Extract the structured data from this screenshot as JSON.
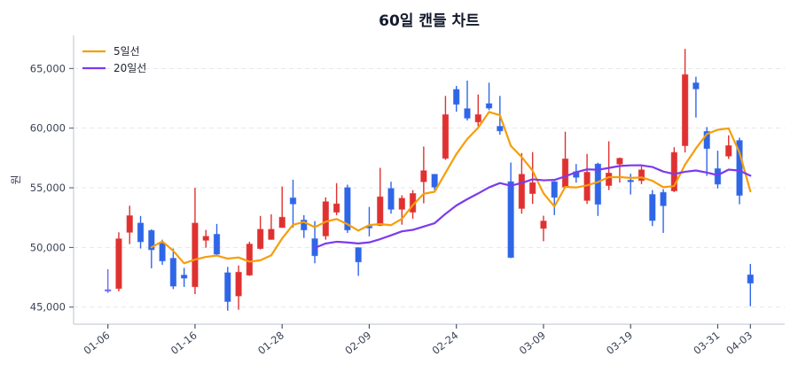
{
  "chart_data": {
    "type": "candlestick",
    "title": "60일 캔들 차트",
    "xlabel": "",
    "ylabel": "원",
    "ylim": [
      43570,
      67770
    ],
    "xlim": [
      -3.15,
      62.15
    ],
    "grid": {
      "y": true,
      "x": false,
      "style": "dashed"
    },
    "legend_position": "upper left",
    "yticks": [
      {
        "value": 45000,
        "label": "45,000"
      },
      {
        "value": 50000,
        "label": "50,000"
      },
      {
        "value": 55000,
        "label": "55,000"
      },
      {
        "value": 60000,
        "label": "60,000"
      },
      {
        "value": 65000,
        "label": "65,000"
      }
    ],
    "xticks": [
      {
        "index": 0,
        "label": "01-06"
      },
      {
        "index": 8,
        "label": "01-16"
      },
      {
        "index": 16,
        "label": "01-28"
      },
      {
        "index": 24,
        "label": "02-09"
      },
      {
        "index": 32,
        "label": "02-24"
      },
      {
        "index": 40,
        "label": "03-09"
      },
      {
        "index": 48,
        "label": "03-19"
      },
      {
        "index": 56,
        "label": "03-31"
      },
      {
        "index": 59,
        "label": "04-03"
      }
    ],
    "colors": {
      "up": "#e03131",
      "down": "#2f66e8",
      "flat": "#6b6bf5",
      "ma5": "#f59e0b",
      "ma20": "#7c3aed",
      "grid": "#e4e7ec",
      "axis": "#dde1e7"
    },
    "ohlc_fields": [
      "open",
      "high",
      "low",
      "close"
    ],
    "candles": [
      [
        46400,
        48180,
        46190,
        46400
      ],
      [
        46560,
        51270,
        46320,
        50720
      ],
      [
        51270,
        53500,
        50280,
        52660
      ],
      [
        52040,
        52640,
        49910,
        50480
      ],
      [
        51420,
        51520,
        48250,
        49810
      ],
      [
        50330,
        50650,
        48550,
        48870
      ],
      [
        49090,
        49910,
        46510,
        46760
      ],
      [
        47680,
        48290,
        46690,
        47430
      ],
      [
        46710,
        54990,
        46090,
        52040
      ],
      [
        50600,
        51470,
        49980,
        50930
      ],
      [
        51100,
        51970,
        49310,
        49440
      ],
      [
        47880,
        48370,
        44700,
        45470
      ],
      [
        45940,
        48490,
        44780,
        47920
      ],
      [
        47680,
        50480,
        47620,
        50280
      ],
      [
        49910,
        52640,
        49830,
        51520
      ],
      [
        50670,
        52780,
        50650,
        51520
      ],
      [
        51670,
        55110,
        51640,
        52530
      ],
      [
        54150,
        55680,
        51670,
        53650
      ],
      [
        52290,
        52710,
        50800,
        51470
      ],
      [
        50730,
        52210,
        48670,
        49310
      ],
      [
        50970,
        54200,
        50650,
        53830
      ],
      [
        52960,
        55390,
        52710,
        53650
      ],
      [
        55010,
        55260,
        51220,
        51470
      ],
      [
        49980,
        50020,
        47620,
        48790
      ],
      [
        51770,
        53400,
        50930,
        51640
      ],
      [
        51840,
        56670,
        51790,
        54240
      ],
      [
        54940,
        55510,
        52830,
        53200
      ],
      [
        53200,
        54370,
        51910,
        54120
      ],
      [
        52960,
        54810,
        52410,
        54520
      ],
      [
        55510,
        58460,
        53700,
        56430
      ],
      [
        56130,
        56150,
        54810,
        55060
      ],
      [
        57470,
        62700,
        57340,
        61130
      ],
      [
        63240,
        63540,
        61380,
        62000
      ],
      [
        61630,
        63980,
        60640,
        60840
      ],
      [
        60520,
        62820,
        60150,
        61130
      ],
      [
        62050,
        63810,
        61510,
        61680
      ],
      [
        60150,
        62700,
        59450,
        59770
      ],
      [
        55510,
        57120,
        49110,
        49160
      ],
      [
        53270,
        57910,
        52830,
        56130
      ],
      [
        54520,
        57990,
        53650,
        55430
      ],
      [
        51600,
        52660,
        50520,
        52210
      ],
      [
        55510,
        55560,
        52710,
        54200
      ],
      [
        55060,
        59700,
        54990,
        57420
      ],
      [
        56350,
        56990,
        55430,
        55880
      ],
      [
        53940,
        57840,
        53650,
        56300
      ],
      [
        56990,
        57100,
        52640,
        53620
      ],
      [
        55190,
        58900,
        54810,
        56230
      ],
      [
        56990,
        57540,
        55430,
        57470
      ],
      [
        55630,
        56180,
        54440,
        55510
      ],
      [
        55610,
        56800,
        55310,
        56500
      ],
      [
        54440,
        54810,
        51790,
        52260
      ],
      [
        54610,
        54890,
        51220,
        53500
      ],
      [
        54740,
        58400,
        54640,
        57960
      ],
      [
        58530,
        66640,
        57960,
        64480
      ],
      [
        63790,
        64310,
        60890,
        63290
      ],
      [
        59720,
        60090,
        56000,
        58290
      ],
      [
        56600,
        58110,
        54940,
        55310
      ],
      [
        57660,
        59400,
        57420,
        58530
      ],
      [
        58960,
        59200,
        53620,
        54370
      ],
      [
        47700,
        48620,
        45070,
        47010
      ]
    ],
    "series": [
      {
        "name": "5일선",
        "key": "ma5",
        "window": 5,
        "start_index": 4,
        "values": [
          50014,
          50508,
          49716,
          48670,
          48982,
          49206,
          49320,
          49062,
          49160,
          48808,
          48926,
          49342,
          50754,
          51900,
          52138,
          51696,
          52158,
          52382,
          51946,
          51410,
          51876,
          51958,
          51868,
          52398,
          53544,
          54502,
          54666,
          56252,
          57828,
          59092,
          60032,
          61356,
          61084,
          58516,
          57574,
          56434,
          54540,
          53426,
          55078,
          55028,
          55202,
          55484,
          55890,
          55900,
          55826,
          55866,
          55594,
          55048,
          55146,
          56940,
          58298,
          59504,
          59866,
          59980,
          57958,
          54702
        ]
      },
      {
        "name": "20일선",
        "key": "ma20",
        "window": 20,
        "start_index": 19,
        "values": [
          49961,
          50332,
          50479,
          50419,
          50335,
          50426,
          50695,
          51017,
          51351,
          51475,
          51750,
          52031,
          52814,
          53518,
          54046,
          54527,
          55035,
          55397,
          55172,
          55405,
          55711,
          55630,
          55658,
          55955,
          56310,
          56543,
          56512,
          56663,
          56831,
          56880,
          56884,
          56744,
          56362,
          56160,
          56342,
          56450,
          56281,
          56058,
          56526,
          56438,
          56017
        ]
      }
    ]
  },
  "legend": {
    "items": [
      {
        "label": "5일선",
        "color": "#f59e0b"
      },
      {
        "label": "20일선",
        "color": "#7c3aed"
      }
    ]
  }
}
